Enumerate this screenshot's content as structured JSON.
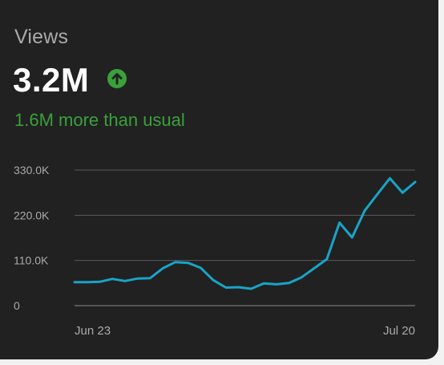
{
  "card": {
    "title": "Views",
    "value": "3.2M",
    "trend_icon": "arrow-up-circle-icon",
    "comparison": "1.6M more than usual"
  },
  "colors": {
    "card_background": "#212121",
    "positive": "#3aa13a",
    "line": "#1aa3c7",
    "gridline": "#5a5a5a",
    "muted_text": "#aaaaaa"
  },
  "chart_data": {
    "type": "line",
    "title": "",
    "xlabel": "",
    "ylabel": "",
    "ylim": [
      0,
      330000
    ],
    "yticks": [
      {
        "value": 0,
        "label": "0"
      },
      {
        "value": 110000,
        "label": "110.0K"
      },
      {
        "value": 220000,
        "label": "220.0K"
      },
      {
        "value": 330000,
        "label": "330.0K"
      }
    ],
    "xticks": [
      {
        "date": "Jun 23",
        "label": "Jun 23"
      },
      {
        "date": "Jul 20",
        "label": "Jul 20"
      }
    ],
    "grid": true,
    "series": [
      {
        "dates": [
          "Jun 23",
          "Jun 24",
          "Jun 25",
          "Jun 26",
          "Jun 27",
          "Jun 28",
          "Jun 29",
          "Jun 30",
          "Jul 1",
          "Jul 2",
          "Jul 3",
          "Jul 4",
          "Jul 5",
          "Jul 6",
          "Jul 7",
          "Jul 8",
          "Jul 9",
          "Jul 10",
          "Jul 11",
          "Jul 12",
          "Jul 13",
          "Jul 14",
          "Jul 15",
          "Jul 16",
          "Jul 17",
          "Jul 18",
          "Jul 19",
          "Jul 20"
        ],
        "values": [
          57000,
          57000,
          58000,
          65000,
          60000,
          66000,
          67000,
          91000,
          106000,
          104000,
          92000,
          62000,
          44000,
          45000,
          41000,
          54000,
          52000,
          55000,
          69000,
          91000,
          113000,
          202000,
          166000,
          231000,
          271000,
          310000,
          275000,
          301000
        ]
      }
    ]
  }
}
